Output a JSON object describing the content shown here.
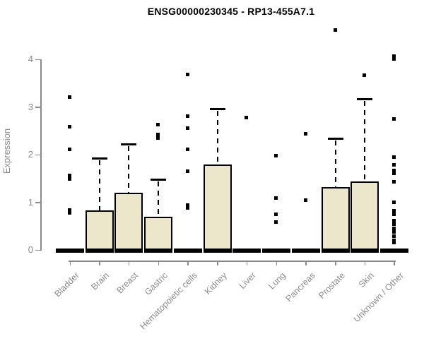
{
  "title": "ENSG00000230345 - RP13-455A7.1",
  "colors": {
    "box_fill": "#ece6cb",
    "box_border": "#000000",
    "axis": "#8a8a8a",
    "tick_text": "#8a8a8a",
    "title_text": "#000000"
  },
  "chart_data": {
    "type": "boxplot",
    "title": "ENSG00000230345 - RP13-455A7.1",
    "xlabel": "",
    "ylabel": "Expression",
    "ylim": [
      0,
      4
    ],
    "yticks": [
      0,
      1,
      2,
      3,
      4
    ],
    "grid": false,
    "categories": [
      "Bladder",
      "Brain",
      "Breast",
      "Gastric",
      "Hematopoietic cells",
      "Kidney",
      "Liver",
      "Lung",
      "Pancreas",
      "Prostate",
      "Skin",
      "Unknown / Other"
    ],
    "series": [
      {
        "name": "Bladder",
        "q1": 0,
        "median": 0,
        "q3": 0,
        "whisker_low": 0,
        "whisker_high": 0,
        "outliers": [
          3.22,
          2.6,
          2.12,
          1.57,
          1.5,
          0.85,
          0.79
        ]
      },
      {
        "name": "Brain",
        "q1": 0,
        "median": 0,
        "q3": 0.83,
        "whisker_low": 0,
        "whisker_high": 1.92,
        "outliers": []
      },
      {
        "name": "Breast",
        "q1": 0,
        "median": 0,
        "q3": 1.2,
        "whisker_low": 0,
        "whisker_high": 2.22,
        "outliers": []
      },
      {
        "name": "Gastric",
        "q1": 0,
        "median": 0,
        "q3": 0.7,
        "whisker_low": 0,
        "whisker_high": 1.48,
        "outliers": [
          2.64,
          2.43,
          2.36
        ]
      },
      {
        "name": "Hematopoietic cells",
        "q1": 0,
        "median": 0,
        "q3": 0,
        "whisker_low": 0,
        "whisker_high": 0,
        "outliers": [
          3.69,
          2.82,
          2.56,
          2.12,
          1.66,
          0.95,
          0.89
        ]
      },
      {
        "name": "Kidney",
        "q1": 0,
        "median": 0,
        "q3": 1.79,
        "whisker_low": 0,
        "whisker_high": 2.96,
        "outliers": []
      },
      {
        "name": "Liver",
        "q1": 0,
        "median": 0,
        "q3": 0,
        "whisker_low": 0,
        "whisker_high": 0,
        "outliers": [
          2.78
        ]
      },
      {
        "name": "Lung",
        "q1": 0,
        "median": 0,
        "q3": 0,
        "whisker_low": 0,
        "whisker_high": 0,
        "outliers": [
          1.99,
          1.1,
          0.75,
          0.59
        ]
      },
      {
        "name": "Pancreas",
        "q1": 0,
        "median": 0,
        "q3": 0,
        "whisker_low": 0,
        "whisker_high": 0,
        "outliers": [
          2.44,
          1.05
        ]
      },
      {
        "name": "Prostate",
        "q1": 0,
        "median": 0,
        "q3": 1.32,
        "whisker_low": 0,
        "whisker_high": 2.34,
        "outliers": [
          4.62
        ]
      },
      {
        "name": "Skin",
        "q1": 0,
        "median": 0,
        "q3": 1.44,
        "whisker_low": 0,
        "whisker_high": 3.17,
        "outliers": [
          3.68
        ]
      },
      {
        "name": "Unknown / Other",
        "q1": 0,
        "median": 0,
        "q3": 0,
        "whisker_low": 0,
        "whisker_high": 0,
        "outliers": [
          4.07,
          4.02,
          2.75,
          1.95,
          1.8,
          1.68,
          1.62,
          1.43,
          1.01,
          0.83,
          0.76,
          0.62,
          0.55,
          0.46,
          0.39,
          0.3,
          0.21,
          0.16
        ]
      }
    ],
    "legend": null
  }
}
